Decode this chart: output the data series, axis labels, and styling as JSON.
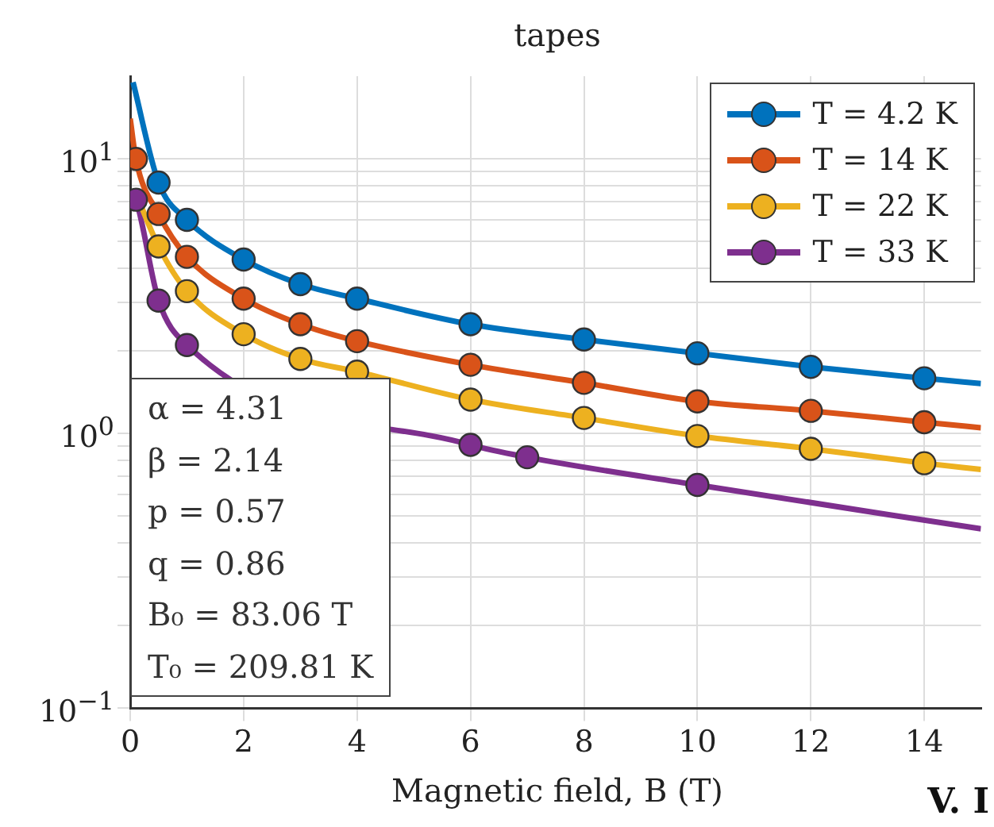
{
  "chart_data": {
    "type": "scatter",
    "title": "tapes",
    "xlabel": "Magnetic field, B (T)",
    "log": "y",
    "grid": true,
    "legend": "top right",
    "marker": "circle",
    "xlim": [
      0,
      15
    ],
    "xticks": [
      0,
      2,
      4,
      6,
      8,
      10,
      12,
      14
    ],
    "ylim": [
      0.1,
      20
    ],
    "yticks": [
      {
        "value": 0.1,
        "label": "10$^{−1}$"
      },
      {
        "value": 0.2,
        "label": null
      },
      {
        "value": 0.3,
        "label": null
      },
      {
        "value": 0.4,
        "label": null
      },
      {
        "value": 0.5,
        "label": null
      },
      {
        "value": 0.6,
        "label": null
      },
      {
        "value": 0.7,
        "label": null
      },
      {
        "value": 0.8,
        "label": null
      },
      {
        "value": 0.9,
        "label": null
      },
      {
        "value": 1,
        "label": "10$^{0}$"
      },
      {
        "value": 2,
        "label": null
      },
      {
        "value": 3,
        "label": null
      },
      {
        "value": 4,
        "label": null
      },
      {
        "value": 5,
        "label": null
      },
      {
        "value": 6,
        "label": null
      },
      {
        "value": 7,
        "label": null
      },
      {
        "value": 8,
        "label": null
      },
      {
        "value": 9,
        "label": null
      },
      {
        "value": 10,
        "label": "10$^{1}$"
      }
    ],
    "series": [
      {
        "type": "line",
        "marker": "none",
        "color": "#0072bd",
        "x": [
          0.05,
          0.5,
          1,
          2,
          3,
          4,
          6,
          8,
          10,
          12,
          14,
          15
        ],
        "values": [
          19,
          8.2,
          6.0,
          4.3,
          3.5,
          3.1,
          2.5,
          2.2,
          1.96,
          1.75,
          1.59,
          1.52
        ]
      },
      {
        "type": "line",
        "marker": "none",
        "color": "#d95319",
        "x": [
          0,
          0.1,
          0.5,
          1,
          2,
          3,
          4,
          6,
          8,
          10,
          12,
          14,
          15
        ],
        "values": [
          14,
          10,
          6.3,
          4.4,
          3.1,
          2.5,
          2.17,
          1.78,
          1.53,
          1.31,
          1.21,
          1.1,
          1.05
        ]
      },
      {
        "type": "line",
        "marker": "none",
        "color": "#edb120",
        "x": [
          0.1,
          0.5,
          1,
          2,
          3,
          4,
          6,
          8,
          10,
          12,
          14,
          15
        ],
        "values": [
          7.5,
          4.8,
          3.3,
          2.3,
          1.87,
          1.68,
          1.33,
          1.14,
          0.98,
          0.88,
          0.78,
          0.74
        ]
      },
      {
        "type": "line",
        "marker": "none",
        "color": "#7e2f8e",
        "x": [
          0,
          0.1,
          0.5,
          1,
          6,
          7,
          10,
          15
        ],
        "values": [
          7.5,
          7.1,
          3.05,
          2.1,
          0.91,
          0.82,
          0.65,
          0.45
        ]
      },
      {
        "name": "T = 4.2 K",
        "color": "#0072bd",
        "x": [
          0.5,
          1,
          2,
          3,
          4,
          6,
          8,
          10,
          12,
          14
        ],
        "values": [
          8.2,
          6.0,
          4.3,
          3.5,
          3.1,
          2.5,
          2.2,
          1.96,
          1.75,
          1.59
        ]
      },
      {
        "name": "T = 14 K",
        "color": "#d95319",
        "x": [
          0.1,
          0.5,
          1,
          2,
          3,
          4,
          6,
          8,
          10,
          12,
          14
        ],
        "values": [
          10,
          6.3,
          4.4,
          3.1,
          2.5,
          2.17,
          1.78,
          1.53,
          1.31,
          1.21,
          1.1
        ]
      },
      {
        "name": "T = 22 K",
        "color": "#edb120",
        "x": [
          0.5,
          1,
          2,
          3,
          4,
          6,
          8,
          10,
          12,
          14
        ],
        "values": [
          4.8,
          3.3,
          2.3,
          1.87,
          1.68,
          1.33,
          1.14,
          0.98,
          0.88,
          0.78
        ]
      },
      {
        "name": "T = 33 K",
        "color": "#7e2f8e",
        "x": [
          0.1,
          0.5,
          1,
          6,
          7,
          10
        ],
        "values": [
          7.1,
          3.05,
          2.1,
          0.91,
          0.82,
          0.65
        ]
      }
    ],
    "annotations": [
      "α = 4.31",
      "β = 2.14",
      "p = 0.57",
      "q = 0.86",
      "B₀ = 83.06 T",
      "T₀ = 209.81 K",
      "V. I"
    ]
  }
}
